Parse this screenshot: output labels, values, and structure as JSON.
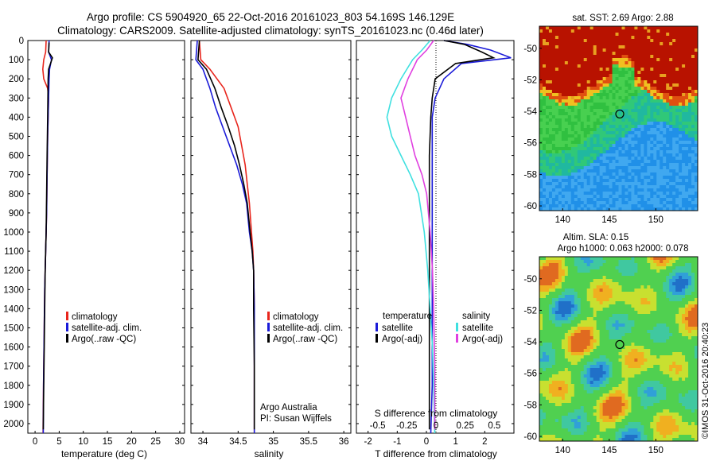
{
  "header": {
    "title_line1": "Argo profile: CS 5904920_65 22-Oct-2016 20161023_803 54.169S 146.129E",
    "title_line2": "Climatology: CARS2009. Satellite-adjusted climatology: synTS_20161023.nc (0.46d later)"
  },
  "colors": {
    "climatology": "#e8251c",
    "satellite": "#1a1ad8",
    "argo": "#000000",
    "satellite_s": "#3fe0e0",
    "argo_s": "#e040e0"
  },
  "depth_axis": {
    "ticks": [
      "0",
      "100",
      "200",
      "300",
      "400",
      "500",
      "600",
      "700",
      "800",
      "900",
      "1000",
      "1100",
      "1200",
      "1300",
      "1400",
      "1500",
      "1600",
      "1700",
      "1800",
      "1900",
      "2000"
    ],
    "ylim": [
      0,
      2050
    ]
  },
  "panel_temperature": {
    "xlabel": "temperature (deg C)",
    "xticks": [
      "0",
      "5",
      "10",
      "15",
      "20",
      "25",
      "30"
    ],
    "legend": [
      "climatology",
      "satellite-adj. clim.",
      "Argo(..raw -QC)"
    ]
  },
  "panel_salinity": {
    "xlabel": "salinity",
    "xticks": [
      "34",
      "34.5",
      "35",
      "35.5",
      "36"
    ],
    "legend": [
      "climatology",
      "satellite-adj. clim.",
      "Argo(..raw -QC)"
    ],
    "credit_line1": "Argo Australia",
    "credit_line2": "PI: Susan Wijffels"
  },
  "panel_difference": {
    "top_xlabel": "S difference from climatology",
    "top_xticks": [
      "-0.5",
      "-0.25",
      "0",
      "0.25",
      "0.5"
    ],
    "xlabel": "T difference from climatology",
    "xticks": [
      "-2",
      "-1",
      "0",
      "1",
      "2"
    ],
    "legend_t_header": "temperature",
    "legend_s_header": "salinity",
    "legend_t": [
      "satellite",
      "Argo(-adj)"
    ],
    "legend_s": [
      "satellite",
      "Argo(-adj)"
    ]
  },
  "map_sst": {
    "title": "sat. SST: 2.69 Argo: 2.88",
    "yticks": [
      "-50",
      "-52",
      "-54",
      "-56",
      "-58",
      "-60"
    ],
    "xticks": [
      "140",
      "145",
      "150"
    ]
  },
  "map_sla": {
    "title_line1": "Altim. SLA: 0.15",
    "title_line2": "Argo h1000: 0.063 h2000: 0.078",
    "yticks": [
      "-50",
      "-52",
      "-54",
      "-56",
      "-58",
      "-60"
    ],
    "xticks": [
      "140",
      "145",
      "150"
    ],
    "stamp": "©IMOS 31-Oct-2016 20:40:23"
  },
  "chart_data": [
    {
      "type": "line",
      "panel": "temperature",
      "xlabel": "temperature (deg C)",
      "ylabel": "",
      "xlim": [
        -1.5,
        31
      ],
      "ylim": [
        2050,
        0
      ],
      "series": [
        {
          "name": "climatology",
          "x": [
            2.3,
            2.2,
            1.8,
            1.6,
            1.8,
            2.6,
            2.8,
            2.7,
            2.6,
            2.5,
            2.4,
            2.3,
            2.2,
            2.1,
            2.0,
            1.9,
            1.85,
            1.8,
            1.75,
            1.7,
            1.65
          ],
          "y": [
            0,
            60,
            100,
            150,
            200,
            250,
            300,
            400,
            500,
            700,
            900,
            1000,
            1100,
            1200,
            1300,
            1500,
            1600,
            1700,
            1800,
            1900,
            2050
          ]
        },
        {
          "name": "satellite-adj. clim.",
          "x": [
            2.9,
            2.8,
            3.4,
            3.0,
            2.9,
            2.8,
            2.7,
            2.6,
            2.5,
            2.4,
            2.3,
            2.2,
            2.1,
            2.0,
            1.9,
            1.85,
            1.8,
            1.75,
            1.7
          ],
          "y": [
            0,
            60,
            100,
            150,
            200,
            300,
            400,
            500,
            700,
            900,
            1000,
            1100,
            1200,
            1300,
            1500,
            1600,
            1700,
            1800,
            2050
          ]
        },
        {
          "name": "Argo(..raw -QC)",
          "x": [
            2.9,
            2.8,
            3.6,
            2.8,
            2.7,
            2.6,
            2.5,
            2.4,
            2.3,
            2.2,
            2.1,
            2.0,
            1.9,
            1.8,
            1.75,
            1.7
          ],
          "y": [
            10,
            60,
            90,
            150,
            200,
            400,
            600,
            800,
            1000,
            1100,
            1200,
            1400,
            1600,
            1800,
            1900,
            2030
          ]
        }
      ]
    },
    {
      "type": "line",
      "panel": "salinity",
      "xlabel": "salinity",
      "ylabel": "",
      "xlim": [
        33.83,
        36.1
      ],
      "ylim": [
        2050,
        0
      ],
      "series": [
        {
          "name": "climatology",
          "x": [
            33.95,
            33.97,
            34.1,
            34.3,
            34.4,
            34.5,
            34.55,
            34.6,
            34.63,
            34.66,
            34.69,
            34.71,
            34.72,
            34.73,
            34.73,
            34.73
          ],
          "y": [
            0,
            100,
            150,
            250,
            350,
            450,
            550,
            650,
            750,
            850,
            1000,
            1100,
            1200,
            1400,
            1700,
            2050
          ]
        },
        {
          "name": "satellite-adj. clim.",
          "x": [
            33.92,
            33.9,
            34.0,
            34.1,
            34.18,
            34.28,
            34.38,
            34.48,
            34.56,
            34.62,
            34.66,
            34.7,
            34.72,
            34.73,
            34.73,
            34.73
          ],
          "y": [
            0,
            100,
            150,
            250,
            350,
            450,
            550,
            650,
            750,
            850,
            1000,
            1100,
            1200,
            1400,
            1700,
            2050
          ]
        },
        {
          "name": "Argo(..raw -QC)",
          "x": [
            33.95,
            33.93,
            34.05,
            34.17,
            34.26,
            34.36,
            34.45,
            34.52,
            34.58,
            34.63,
            34.67,
            34.7,
            34.72,
            34.72,
            34.73,
            34.73
          ],
          "y": [
            0,
            100,
            150,
            250,
            350,
            450,
            550,
            650,
            750,
            850,
            1000,
            1100,
            1200,
            1400,
            1700,
            2030
          ]
        }
      ]
    },
    {
      "type": "line",
      "panel": "difference",
      "xlabel": "T difference from climatology",
      "ylabel": "",
      "xlim": [
        -2.4,
        3.0
      ],
      "ylim": [
        2050,
        0
      ],
      "s_xlim": [
        -0.6,
        0.75
      ],
      "series": [
        {
          "name": "temperature satellite",
          "x": [
            0.6,
            1.4,
            2.2,
            2.9,
            1.2,
            0.6,
            0.3,
            0.2,
            0.2,
            0.2,
            0.2,
            0.2,
            0.2,
            0.2,
            0.2,
            0.15
          ],
          "y": [
            0,
            20,
            50,
            90,
            120,
            200,
            300,
            400,
            600,
            800,
            1000,
            1200,
            1400,
            1600,
            1800,
            2050
          ]
        },
        {
          "name": "temperature Argo(-adj)",
          "x": [
            0.6,
            1.3,
            1.9,
            2.3,
            1.0,
            0.3,
            0.2,
            0.15,
            0.1,
            0.1,
            0.1,
            0.1,
            0.1,
            0.1,
            0.1,
            0.1
          ],
          "y": [
            0,
            20,
            60,
            90,
            120,
            200,
            300,
            400,
            600,
            800,
            1000,
            1200,
            1400,
            1600,
            1800,
            2030
          ]
        },
        {
          "name": "salinity satellite",
          "x": [
            -0.05,
            -0.12,
            -0.2,
            -0.3,
            -0.38,
            -0.42,
            -0.38,
            -0.3,
            -0.22,
            -0.15,
            -0.1,
            -0.07,
            -0.05,
            -0.03,
            -0.02,
            -0.01
          ],
          "y": [
            0,
            50,
            100,
            200,
            300,
            400,
            500,
            600,
            700,
            800,
            1000,
            1200,
            1400,
            1600,
            1800,
            2050
          ]
        },
        {
          "name": "salinity Argo(-adj)",
          "x": [
            -0.02,
            -0.08,
            -0.16,
            -0.24,
            -0.3,
            -0.26,
            -0.22,
            -0.18,
            -0.12,
            -0.08,
            -0.05,
            -0.03,
            -0.02,
            -0.01,
            -0.01
          ],
          "y": [
            0,
            50,
            100,
            200,
            300,
            400,
            500,
            600,
            700,
            800,
            1000,
            1200,
            1400,
            1700,
            2030
          ]
        }
      ]
    },
    {
      "type": "heatmap",
      "panel": "map_sst",
      "title": "sat. SST: 2.69 Argo: 2.88",
      "xlim": [
        137.5,
        154.5
      ],
      "ylim": [
        -60.3,
        -48.6
      ],
      "marker": {
        "lon": 146.129,
        "lat": -54.169
      }
    },
    {
      "type": "heatmap",
      "panel": "map_sla",
      "title": "Altim. SLA: 0.15",
      "xlim": [
        137.5,
        154.5
      ],
      "ylim": [
        -60.3,
        -48.6
      ],
      "marker": {
        "lon": 146.129,
        "lat": -54.169
      }
    }
  ]
}
